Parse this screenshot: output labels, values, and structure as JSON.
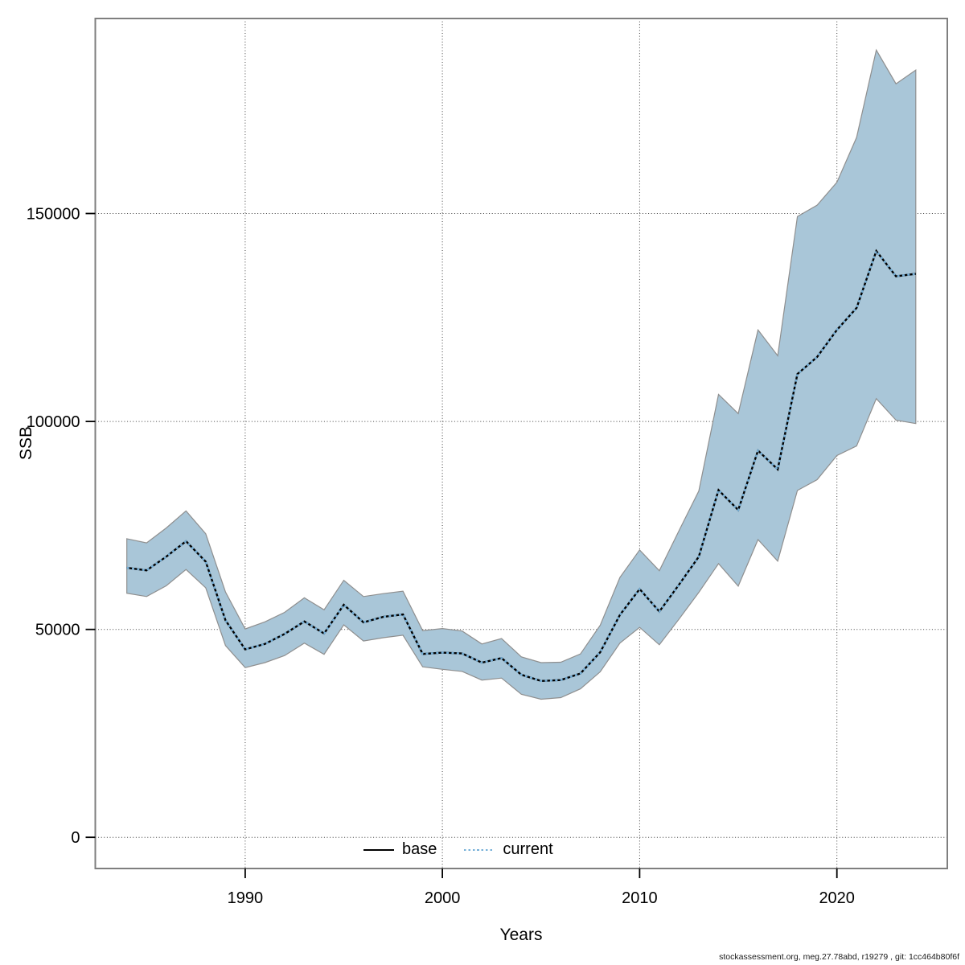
{
  "footer": {
    "text": "stockassessment.org, meg.27.78abd, r19279 , git: 1cc464b80f6f"
  },
  "legend": {
    "items": [
      {
        "label": "base",
        "style": "solid",
        "color": "#000000"
      },
      {
        "label": "current",
        "style": "dotted",
        "color": "#76b0d8"
      }
    ]
  },
  "chart_data": {
    "type": "line",
    "title": "",
    "xlabel": "Years",
    "ylabel": "SSB",
    "grid": true,
    "legend_position": "bottom-center",
    "xlim": [
      1982.4,
      2025.6
    ],
    "ylim": [
      -7500,
      196900
    ],
    "xticks": [
      1990,
      2000,
      2010,
      2020
    ],
    "yticks": [
      0,
      50000,
      100000,
      150000
    ],
    "x": [
      1984,
      1985,
      1986,
      1987,
      1988,
      1989,
      1990,
      1991,
      1992,
      1993,
      1994,
      1995,
      1996,
      1997,
      1998,
      1999,
      2000,
      2001,
      2002,
      2003,
      2004,
      2005,
      2006,
      2007,
      2008,
      2009,
      2010,
      2011,
      2012,
      2013,
      2014,
      2015,
      2016,
      2017,
      2018,
      2019,
      2020,
      2021,
      2022,
      2023,
      2024
    ],
    "series": [
      {
        "name": "base",
        "style": "solid",
        "color": "#000000",
        "values": [
          64800,
          64200,
          67500,
          71200,
          66300,
          52200,
          45200,
          46500,
          48900,
          51900,
          49000,
          55900,
          51700,
          53000,
          53600,
          44100,
          44400,
          44200,
          42000,
          43100,
          39100,
          37600,
          37800,
          39400,
          44500,
          53500,
          59700,
          54300,
          60800,
          67500,
          83500,
          78700,
          93000,
          88500,
          111400,
          115500,
          122000,
          127300,
          141000,
          134900,
          135500
        ]
      },
      {
        "name": "current",
        "style": "dotted",
        "color": "#76b0d8",
        "values": [
          64800,
          64200,
          67500,
          71200,
          66300,
          52200,
          45200,
          46500,
          48900,
          51900,
          49000,
          55900,
          51700,
          53000,
          53600,
          44100,
          44400,
          44200,
          42000,
          43100,
          39100,
          37600,
          37800,
          39400,
          44500,
          53500,
          59700,
          54300,
          60800,
          67500,
          83500,
          78700,
          93000,
          88500,
          111400,
          115500,
          122000,
          127300,
          141000,
          134900,
          135500
        ]
      }
    ],
    "band": {
      "name": "confidence-interval",
      "fill": "#a9c6d8",
      "edge": "#8f8f8f",
      "low": [
        58700,
        57900,
        60500,
        64400,
        60000,
        46100,
        40800,
        42000,
        43700,
        46700,
        44000,
        51100,
        47200,
        48000,
        48600,
        41000,
        40400,
        39900,
        37800,
        38300,
        34400,
        33200,
        33600,
        35700,
        39800,
        46700,
        50500,
        46300,
        52500,
        58900,
        65800,
        60400,
        71600,
        66400,
        83400,
        86000,
        91800,
        94100,
        105500,
        100300,
        99500
      ],
      "high": [
        71800,
        70800,
        74400,
        78500,
        73000,
        59000,
        50100,
        51800,
        54100,
        57600,
        54700,
        61800,
        57900,
        58600,
        59200,
        49700,
        50200,
        49600,
        46500,
        47800,
        43400,
        42000,
        42100,
        44100,
        51000,
        62500,
        69100,
        64100,
        73800,
        83300,
        106500,
        101900,
        122000,
        115800,
        149300,
        152000,
        157500,
        168300,
        189300,
        181200,
        184500
      ]
    },
    "colors": {
      "grid": "#404040",
      "frame": "#7f7f7f",
      "tick": "#000000"
    }
  }
}
